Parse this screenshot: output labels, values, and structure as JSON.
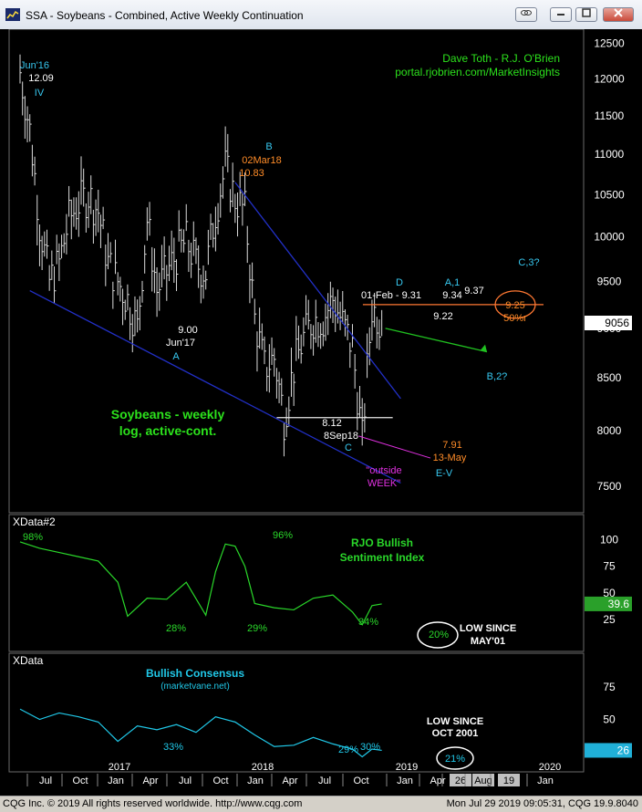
{
  "window": {
    "title": "SSA - Soybeans - Combined, Active Weekly Continuation",
    "buttons": [
      "link",
      "minimize",
      "maximize",
      "close"
    ],
    "icons": [
      "chain-link-icon",
      "minimize-icon",
      "maximize-icon",
      "close-icon"
    ]
  },
  "status": {
    "copyright": "CQG Inc. © 2019 All rights reserved worldwide. http://www.cqg.com",
    "datetime": "Mon Jul 29 2019 09:05:31, CQG 19.9.8040"
  },
  "colors": {
    "background": "#000000",
    "price_bars": "#dcdcdc",
    "trendline": "#2230c8",
    "annotation_cyan": "#37c8f0",
    "annotation_orange": "#ff8c28",
    "annotation_green": "#2ce21c",
    "annotation_magenta": "#e030e0",
    "sentiment_line": "#2ad82a",
    "consensus_line": "#20c8e8",
    "retracement_line": "#ff7832",
    "projection_arrow": "#20c020"
  },
  "chart_data": [
    {
      "type": "line",
      "panel": "price",
      "style": "ohlc-bars",
      "scale": "log",
      "title": "Soybeans - weekly",
      "subtitle": "log, active-cont.",
      "credit": [
        "Dave Toth - R.J. O'Brien",
        "portal.rjobrien.com/MarketInsights"
      ],
      "ylim": [
        7400,
        12600
      ],
      "y_ticks": [
        "12500",
        "12000",
        "11500",
        "11000",
        "10500",
        "10000",
        "9500",
        "9000",
        "8500",
        "8000",
        "7500"
      ],
      "last_value_label": "9056",
      "x_tick_labels": [
        "Jul",
        "Oct",
        "Jan",
        "Apr",
        "Jul",
        "Oct",
        "Jan",
        "Apr",
        "Jul",
        "Oct",
        "Jan",
        "Apr",
        "26",
        "Aug",
        "19",
        "Jan"
      ],
      "year_labels": [
        "2017",
        "2018",
        "2019",
        "2020"
      ],
      "x": [
        "2016-06",
        "2016-07",
        "2016-08",
        "2016-09",
        "2016-10",
        "2016-11",
        "2016-12",
        "2017-01",
        "2017-02",
        "2017-03",
        "2017-04",
        "2017-05",
        "2017-06",
        "2017-07",
        "2017-08",
        "2017-09",
        "2017-10",
        "2017-11",
        "2017-12",
        "2018-01",
        "2018-02",
        "2018-03",
        "2018-04",
        "2018-05",
        "2018-06",
        "2018-07",
        "2018-08",
        "2018-09",
        "2018-10",
        "2018-11",
        "2018-12",
        "2019-01",
        "2019-02",
        "2019-03",
        "2019-04",
        "2019-05",
        "2019-06",
        "2019-07"
      ],
      "series": [
        {
          "values": [
            12090,
            11300,
            10150,
            9500,
            9700,
            10200,
            10400,
            10500,
            10300,
            9700,
            9500,
            9300,
            9000,
            10200,
            9400,
            9600,
            9800,
            9950,
            9700,
            9600,
            10300,
            10830,
            10450,
            10300,
            9100,
            8600,
            8700,
            8120,
            8600,
            8900,
            9100,
            9100,
            9310,
            9050,
            8800,
            7910,
            9220,
            9056
          ]
        }
      ],
      "annotations": [
        {
          "text": "Jun'16",
          "color": "cyan"
        },
        {
          "text": "12.09",
          "color": "white"
        },
        {
          "text": "IV",
          "color": "cyan"
        },
        {
          "text": "B",
          "color": "cyan"
        },
        {
          "text": "02Mar18",
          "color": "orange"
        },
        {
          "text": "10.83",
          "color": "orange"
        },
        {
          "text": "9.00",
          "color": "white"
        },
        {
          "text": "Jun'17",
          "color": "white"
        },
        {
          "text": "A",
          "color": "cyan"
        },
        {
          "text": "D",
          "color": "cyan"
        },
        {
          "text": "01-Feb - 9.31",
          "color": "white"
        },
        {
          "text": "A,1",
          "color": "cyan"
        },
        {
          "text": "9.34",
          "color": "white"
        },
        {
          "text": "9.37",
          "color": "white"
        },
        {
          "text": "9.22",
          "color": "white"
        },
        {
          "text": "C,3?",
          "color": "cyan"
        },
        {
          "text": "B,2?",
          "color": "cyan"
        },
        {
          "text": "8.12",
          "color": "white"
        },
        {
          "text": "8Sep18",
          "color": "white"
        },
        {
          "text": "C",
          "color": "cyan"
        },
        {
          "text": "7.91",
          "color": "orange"
        },
        {
          "text": "13-May",
          "color": "orange"
        },
        {
          "text": "E-V",
          "color": "cyan"
        },
        {
          "text": "\"outside",
          "color": "magenta"
        },
        {
          "text": "WEEK\"",
          "color": "magenta"
        },
        {
          "text": "9.25",
          "color": "orange"
        },
        {
          "text": "50%r",
          "color": "orange"
        }
      ]
    },
    {
      "type": "line",
      "panel": "sentiment",
      "title": "XData#2",
      "label": [
        "RJO Bullish",
        "Sentiment Index"
      ],
      "ylim": [
        0,
        110
      ],
      "y_ticks": [
        "100",
        "75",
        "50",
        "25"
      ],
      "last_value_label": "39.6",
      "x": [
        "2016-06",
        "2016-08",
        "2016-10",
        "2016-12",
        "2017-02",
        "2017-04",
        "2017-05",
        "2017-07",
        "2017-09",
        "2017-11",
        "2018-01",
        "2018-02",
        "2018-03",
        "2018-04",
        "2018-05",
        "2018-06",
        "2018-08",
        "2018-10",
        "2018-12",
        "2019-02",
        "2019-03",
        "2019-04",
        "2019-05",
        "2019-06",
        "2019-07"
      ],
      "series": [
        {
          "values": [
            98,
            92,
            88,
            84,
            80,
            60,
            28,
            45,
            44,
            60,
            29,
            70,
            96,
            94,
            75,
            40,
            36,
            34,
            45,
            48,
            40,
            32,
            20,
            38,
            39.6
          ]
        }
      ],
      "annotations": [
        {
          "text": "98%"
        },
        {
          "text": "28%"
        },
        {
          "text": "29%"
        },
        {
          "text": "96%"
        },
        {
          "text": "34%"
        },
        {
          "text": "20%"
        },
        {
          "text": "LOW SINCE"
        },
        {
          "text": "MAY'01"
        }
      ]
    },
    {
      "type": "line",
      "panel": "consensus",
      "title": "XData",
      "label": [
        "Bullish Consensus",
        "(marketvane.net)"
      ],
      "ylim": [
        15,
        90
      ],
      "y_ticks": [
        "75",
        "50",
        "25"
      ],
      "last_value_label": "26",
      "x": [
        "2016-06",
        "2016-08",
        "2016-10",
        "2016-12",
        "2017-02",
        "2017-04",
        "2017-06",
        "2017-08",
        "2017-10",
        "2017-12",
        "2018-02",
        "2018-04",
        "2018-06",
        "2018-08",
        "2018-10",
        "2018-12",
        "2019-02",
        "2019-04",
        "2019-05",
        "2019-06",
        "2019-07"
      ],
      "series": [
        {
          "values": [
            58,
            50,
            55,
            52,
            48,
            33,
            45,
            42,
            46,
            40,
            52,
            48,
            38,
            29,
            30,
            36,
            31,
            27,
            21,
            27,
            26
          ]
        }
      ],
      "annotations": [
        {
          "text": "33%"
        },
        {
          "text": "29%"
        },
        {
          "text": "30%"
        },
        {
          "text": "21%"
        },
        {
          "text": "LOW SINCE"
        },
        {
          "text": "OCT 2001"
        }
      ]
    }
  ]
}
